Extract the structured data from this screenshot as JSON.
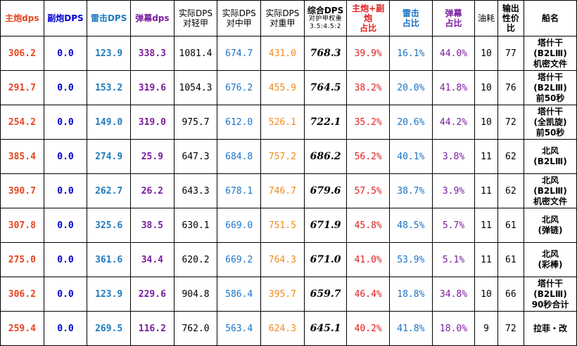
{
  "colors": {
    "main": "#e8431f",
    "secondary": "#0000d0",
    "torpedo": "#1f7bbd",
    "barrage": "#7a1c9e",
    "medium_armor": "#1a73c7",
    "heavy_armor": "#f28a1a"
  },
  "headers": {
    "main_dps": "主炮dps",
    "sec_dps": "副炮DPS",
    "tor_dps": "雷击DPS",
    "bar_dps": "弹幕dps",
    "real_light": [
      "实际DPS",
      "对轻甲"
    ],
    "real_medium": [
      "实际DPS",
      "对中甲"
    ],
    "real_heavy": [
      "实际DPS",
      "对重甲"
    ],
    "composite": "综合DPS",
    "composite_sub": [
      "对护甲权重",
      "3.5:4.5:2"
    ],
    "main_sec_ratio": [
      "主炮+副",
      "炮",
      "占比"
    ],
    "tor_ratio": [
      "雷击",
      "占比"
    ],
    "bar_ratio": [
      "弹幕",
      "占比"
    ],
    "oil": "油耗",
    "cost_perf": [
      "输出",
      "性价",
      "比"
    ],
    "name": "船名"
  },
  "rows": [
    {
      "main": "306.2",
      "sec": "0.0",
      "tor": "123.9",
      "bar": "338.3",
      "light": "1081.4",
      "medium": "674.7",
      "heavy": "431.0",
      "comp": "768.3",
      "p1": "39.9%",
      "p2": "16.1%",
      "p3": "44.0%",
      "oil": "10",
      "cp": "77",
      "name": [
        "塔什干",
        "(B2LⅢ)",
        "机密文件"
      ]
    },
    {
      "main": "291.7",
      "sec": "0.0",
      "tor": "153.2",
      "bar": "319.6",
      "light": "1054.3",
      "medium": "676.2",
      "heavy": "455.9",
      "comp": "764.5",
      "p1": "38.2%",
      "p2": "20.0%",
      "p3": "41.8%",
      "oil": "10",
      "cp": "76",
      "name": [
        "塔什干",
        "(B2LⅢ)",
        "前50秒"
      ]
    },
    {
      "main": "254.2",
      "sec": "0.0",
      "tor": "149.0",
      "bar": "319.0",
      "light": "975.7",
      "medium": "612.0",
      "heavy": "526.1",
      "comp": "722.1",
      "p1": "35.2%",
      "p2": "20.6%",
      "p3": "44.2%",
      "oil": "10",
      "cp": "72",
      "name": [
        "塔什干",
        "(全凯旋)",
        "前50秒"
      ]
    },
    {
      "main": "385.4",
      "sec": "0.0",
      "tor": "274.9",
      "bar": "25.9",
      "light": "647.3",
      "medium": "684.8",
      "heavy": "757.2",
      "comp": "686.2",
      "p1": "56.2%",
      "p2": "40.1%",
      "p3": "3.8%",
      "oil": "11",
      "cp": "62",
      "name": [
        "北风",
        "(B2LⅢ)"
      ]
    },
    {
      "main": "390.7",
      "sec": "0.0",
      "tor": "262.7",
      "bar": "26.2",
      "light": "643.3",
      "medium": "678.1",
      "heavy": "746.7",
      "comp": "679.6",
      "p1": "57.5%",
      "p2": "38.7%",
      "p3": "3.9%",
      "oil": "11",
      "cp": "62",
      "name": [
        "北风",
        "(B2LⅢ)",
        "机密文件"
      ]
    },
    {
      "main": "307.8",
      "sec": "0.0",
      "tor": "325.6",
      "bar": "38.5",
      "light": "630.1",
      "medium": "669.0",
      "heavy": "751.5",
      "comp": "671.9",
      "p1": "45.8%",
      "p2": "48.5%",
      "p3": "5.7%",
      "oil": "11",
      "cp": "61",
      "name": [
        "北风",
        "(弹链)"
      ]
    },
    {
      "main": "275.0",
      "sec": "0.0",
      "tor": "361.6",
      "bar": "34.4",
      "light": "620.2",
      "medium": "669.2",
      "heavy": "764.3",
      "comp": "671.0",
      "p1": "41.0%",
      "p2": "53.9%",
      "p3": "5.1%",
      "oil": "11",
      "cp": "61",
      "name": [
        "北风",
        "(彩棒)"
      ]
    },
    {
      "main": "306.2",
      "sec": "0.0",
      "tor": "123.9",
      "bar": "229.6",
      "light": "904.8",
      "medium": "586.4",
      "heavy": "395.7",
      "comp": "659.7",
      "p1": "46.4%",
      "p2": "18.8%",
      "p3": "34.8%",
      "oil": "10",
      "cp": "66",
      "name": [
        "塔什干",
        "(B2LⅢ)",
        "90秒合计"
      ]
    },
    {
      "main": "259.4",
      "sec": "0.0",
      "tor": "269.5",
      "bar": "116.2",
      "light": "762.0",
      "medium": "563.4",
      "heavy": "624.3",
      "comp": "645.1",
      "p1": "40.2%",
      "p2": "41.8%",
      "p3": "18.0%",
      "oil": "9",
      "cp": "72",
      "name": [
        "拉菲・改"
      ]
    }
  ]
}
